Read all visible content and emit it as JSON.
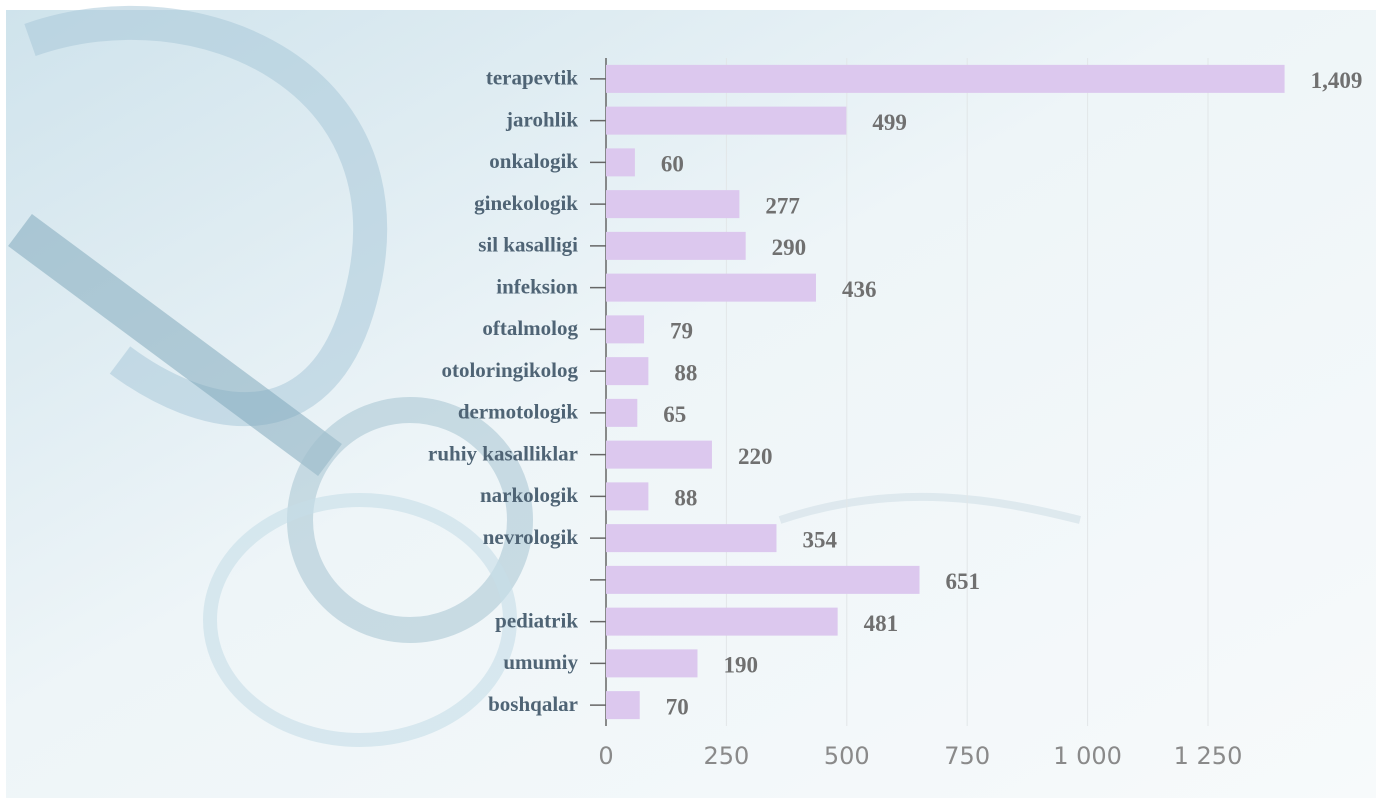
{
  "chart_data": {
    "type": "bar",
    "orientation": "horizontal",
    "categories": [
      "terapevtik",
      "jarohlik",
      "onkalogik",
      "ginekologik",
      "sil kasalligi",
      "infeksion",
      "oftalmolog",
      "otoloringikolog",
      "dermotologik",
      "ruhiy kasalliklar",
      "narkologik",
      "nevrologik",
      null,
      "pediatrik",
      "umumiy",
      "boshqalar"
    ],
    "values": [
      1409,
      499,
      60,
      277,
      290,
      436,
      79,
      88,
      65,
      220,
      88,
      354,
      651,
      481,
      190,
      70
    ],
    "value_labels": [
      "1,409",
      "499",
      "60",
      "277",
      "290",
      "436",
      "79",
      "88",
      "65",
      "220",
      "88",
      "354",
      "651",
      "481",
      "190",
      "70"
    ],
    "color": "#dcc8ee",
    "xlim": [
      0,
      1450
    ],
    "xticks": [
      0,
      250,
      500,
      750,
      {
        "value": 1000,
        "label": "1 000"
      },
      {
        "value": 1250,
        "label": "1 250"
      }
    ],
    "grid": true
  }
}
